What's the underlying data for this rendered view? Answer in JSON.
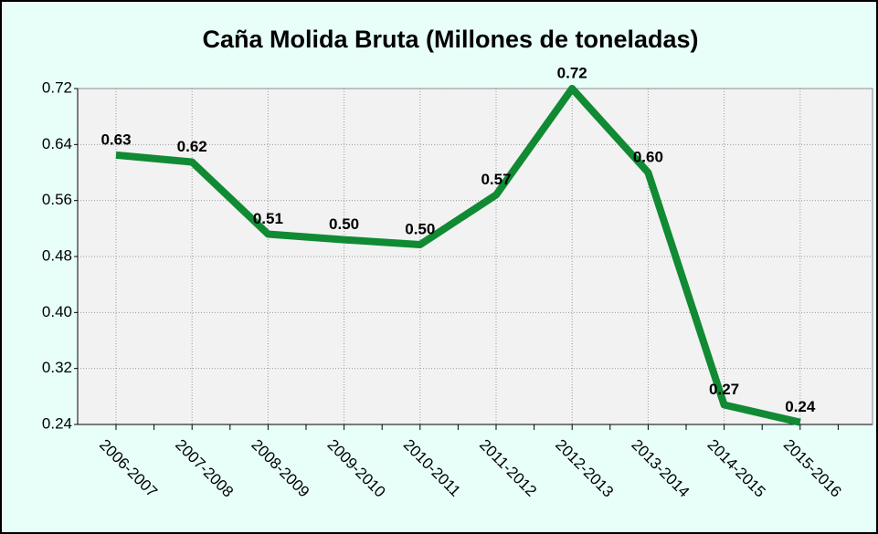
{
  "chart_data": {
    "type": "line",
    "title": "Caña Molida Bruta (Millones de toneladas)",
    "categories": [
      "2006-2007",
      "2007-2008",
      "2008-2009",
      "2009-2010",
      "2010-2011",
      "2011-2012",
      "2012-2013",
      "2013-2014",
      "2014-2015",
      "2015-2016"
    ],
    "values": [
      0.625,
      0.615,
      0.512,
      0.504,
      0.497,
      0.568,
      0.72,
      0.6,
      0.268,
      0.243
    ],
    "value_labels": [
      "0.63",
      "0.62",
      "0.51",
      "0.50",
      "0.50",
      "0.57",
      "0.72",
      "0.60",
      "0.27",
      "0.24"
    ],
    "color": "#108a33",
    "ylim": [
      0.24,
      0.72
    ],
    "yticks": [
      0.24,
      0.32,
      {
        "value": 0.4,
        "label": "0.40"
      },
      0.48,
      0.56,
      0.64,
      0.72
    ],
    "grid": true
  }
}
